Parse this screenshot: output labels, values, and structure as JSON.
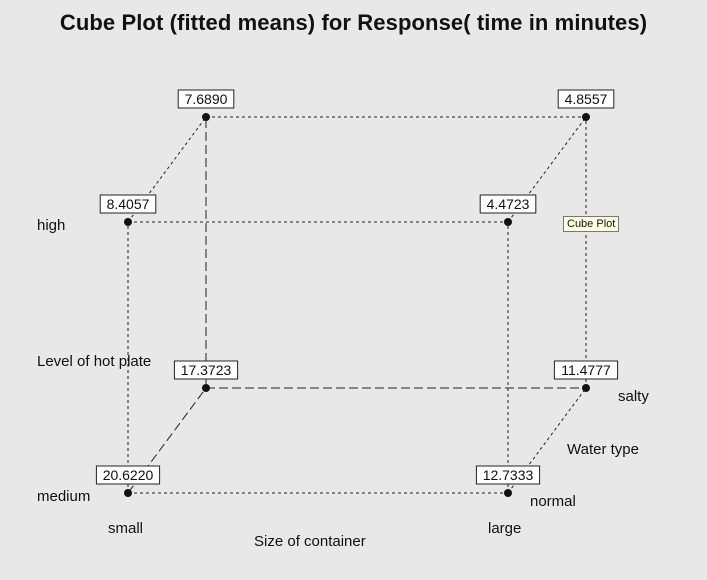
{
  "chart_data": {
    "type": "cube",
    "title": "Cube Plot (fitted means) for Response( time in minutes)",
    "factors": {
      "x": {
        "name": "Size of container",
        "low": "small",
        "high": "large"
      },
      "y": {
        "name": "Level of hot plate",
        "low": "medium",
        "high": "high"
      },
      "z": {
        "name": "Water type",
        "low": "normal",
        "high": "salty"
      }
    },
    "points": [
      {
        "x": "small",
        "y": "high",
        "z": "salty",
        "value": "7.6890"
      },
      {
        "x": "large",
        "y": "high",
        "z": "salty",
        "value": "4.8557"
      },
      {
        "x": "small",
        "y": "high",
        "z": "normal",
        "value": "8.4057"
      },
      {
        "x": "large",
        "y": "high",
        "z": "normal",
        "value": "4.4723"
      },
      {
        "x": "small",
        "y": "medium",
        "z": "salty",
        "value": "17.3723"
      },
      {
        "x": "large",
        "y": "medium",
        "z": "salty",
        "value": "11.4777"
      },
      {
        "x": "small",
        "y": "medium",
        "z": "normal",
        "value": "20.6220"
      },
      {
        "x": "large",
        "y": "medium",
        "z": "normal",
        "value": "12.7333"
      }
    ]
  },
  "tooltip": "Cube Plot"
}
